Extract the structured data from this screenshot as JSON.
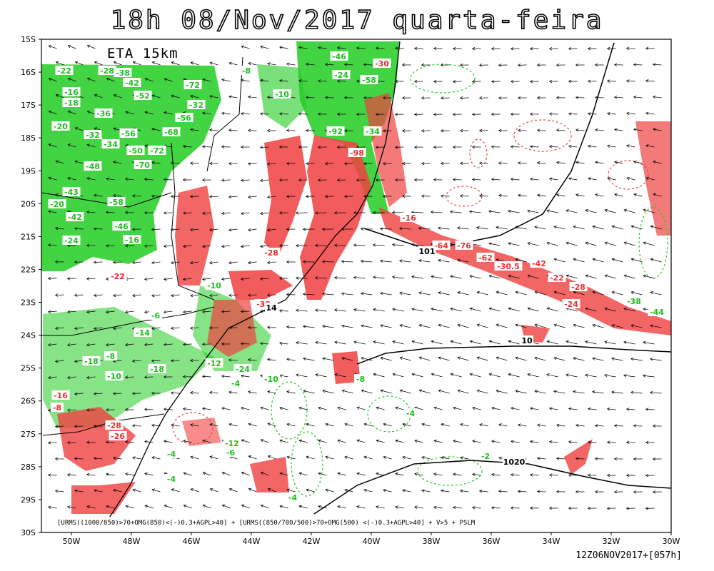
{
  "title": "18h 08/Nov/2017 quarta-feira",
  "model_label": "ETA 15km",
  "lat_ticks": [
    {
      "value": -15,
      "label": "15S"
    },
    {
      "value": -16,
      "label": "16S"
    },
    {
      "value": -17,
      "label": "17S"
    },
    {
      "value": -18,
      "label": "18S"
    },
    {
      "value": -19,
      "label": "19S"
    },
    {
      "value": -20,
      "label": "20S"
    },
    {
      "value": -21,
      "label": "21S"
    },
    {
      "value": -22,
      "label": "22S"
    },
    {
      "value": -23,
      "label": "23S"
    },
    {
      "value": -24,
      "label": "24S"
    },
    {
      "value": -25,
      "label": "25S"
    },
    {
      "value": -26,
      "label": "26S"
    },
    {
      "value": -27,
      "label": "27S"
    },
    {
      "value": -28,
      "label": "28S"
    },
    {
      "value": -29,
      "label": "29S"
    },
    {
      "value": -30,
      "label": "30S"
    }
  ],
  "lon_ticks": [
    {
      "value": -50,
      "label": "50W"
    },
    {
      "value": -48,
      "label": "48W"
    },
    {
      "value": -46,
      "label": "46W"
    },
    {
      "value": -44,
      "label": "44W"
    },
    {
      "value": -42,
      "label": "42W"
    },
    {
      "value": -40,
      "label": "40W"
    },
    {
      "value": -38,
      "label": "38W"
    },
    {
      "value": -36,
      "label": "36W"
    },
    {
      "value": -34,
      "label": "34W"
    },
    {
      "value": -32,
      "label": "32W"
    },
    {
      "value": -30,
      "label": "30W"
    }
  ],
  "contour_labels": [
    {
      "text": "-22",
      "color": "green"
    },
    {
      "text": "-28",
      "color": "green"
    },
    {
      "text": "-38",
      "color": "green"
    },
    {
      "text": "-42",
      "color": "green"
    },
    {
      "text": "-72",
      "color": "green"
    },
    {
      "text": "-16",
      "color": "green"
    },
    {
      "text": "-52",
      "color": "green"
    },
    {
      "text": "-18",
      "color": "green"
    },
    {
      "text": "-32",
      "color": "green"
    },
    {
      "text": "-36",
      "color": "green"
    },
    {
      "text": "-56",
      "color": "green"
    },
    {
      "text": "-20",
      "color": "green"
    },
    {
      "text": "-32",
      "color": "green"
    },
    {
      "text": "-56",
      "color": "green"
    },
    {
      "text": "-68",
      "color": "green"
    },
    {
      "text": "-34",
      "color": "green"
    },
    {
      "text": "-50",
      "color": "green"
    },
    {
      "text": "-72",
      "color": "green"
    },
    {
      "text": "-70",
      "color": "green"
    },
    {
      "text": "-48",
      "color": "green"
    },
    {
      "text": "-43",
      "color": "green"
    },
    {
      "text": "-20",
      "color": "green"
    },
    {
      "text": "-58",
      "color": "green"
    },
    {
      "text": "-42",
      "color": "green"
    },
    {
      "text": "-46",
      "color": "green"
    },
    {
      "text": "-24",
      "color": "green"
    },
    {
      "text": "-16",
      "color": "green"
    },
    {
      "text": "-46",
      "color": "green"
    },
    {
      "text": "-24",
      "color": "green"
    },
    {
      "text": "-58",
      "color": "green"
    },
    {
      "text": "-10",
      "color": "green"
    },
    {
      "text": "-8",
      "color": "green"
    },
    {
      "text": "-92",
      "color": "green"
    },
    {
      "text": "-34",
      "color": "green"
    },
    {
      "text": "-10",
      "color": "green"
    },
    {
      "text": "-6",
      "color": "green"
    },
    {
      "text": "-14",
      "color": "green"
    },
    {
      "text": "-8",
      "color": "green"
    },
    {
      "text": "-18",
      "color": "green"
    },
    {
      "text": "-10",
      "color": "green"
    },
    {
      "text": "-18",
      "color": "green"
    },
    {
      "text": "-12",
      "color": "green"
    },
    {
      "text": "-24",
      "color": "green"
    },
    {
      "text": "-10",
      "color": "green"
    },
    {
      "text": "-4",
      "color": "green"
    },
    {
      "text": "-8",
      "color": "green"
    },
    {
      "text": "-4",
      "color": "green"
    },
    {
      "text": "-2",
      "color": "green"
    },
    {
      "text": "-12",
      "color": "green"
    },
    {
      "text": "-6",
      "color": "green"
    },
    {
      "text": "-4",
      "color": "green"
    },
    {
      "text": "-4",
      "color": "green"
    },
    {
      "text": "-4",
      "color": "green"
    },
    {
      "text": "-38",
      "color": "green"
    },
    {
      "text": "-44",
      "color": "green"
    },
    {
      "text": "-30",
      "color": "red"
    },
    {
      "text": "-98",
      "color": "red"
    },
    {
      "text": "-16",
      "color": "red"
    },
    {
      "text": "-64",
      "color": "red"
    },
    {
      "text": "-76",
      "color": "red"
    },
    {
      "text": "-28",
      "color": "red"
    },
    {
      "text": "-62",
      "color": "red"
    },
    {
      "text": "-30.5",
      "color": "red"
    },
    {
      "text": "-42",
      "color": "red"
    },
    {
      "text": "-22",
      "color": "red"
    },
    {
      "text": "-28",
      "color": "red"
    },
    {
      "text": "-24",
      "color": "red"
    },
    {
      "text": "-38",
      "color": "red"
    },
    {
      "text": "-28",
      "color": "red"
    },
    {
      "text": "-26",
      "color": "red"
    },
    {
      "text": "-8",
      "color": "red"
    },
    {
      "text": "-16",
      "color": "red"
    },
    {
      "text": "-22",
      "color": "red"
    },
    {
      "text": "101",
      "color": "black"
    },
    {
      "text": "1020",
      "color": "black"
    },
    {
      "text": "10",
      "color": "black"
    },
    {
      "text": "14",
      "color": "black"
    }
  ],
  "formula": "[URMS((1000/850)>70+OMG(850)<(-)0.3+AGPL>40] + [URMS((850/700/500)>70+OMG(500) <(-)0.3+AGPL>40] + V>5 + PSLM",
  "footer": "12Z06NOV2017+[057h]"
}
